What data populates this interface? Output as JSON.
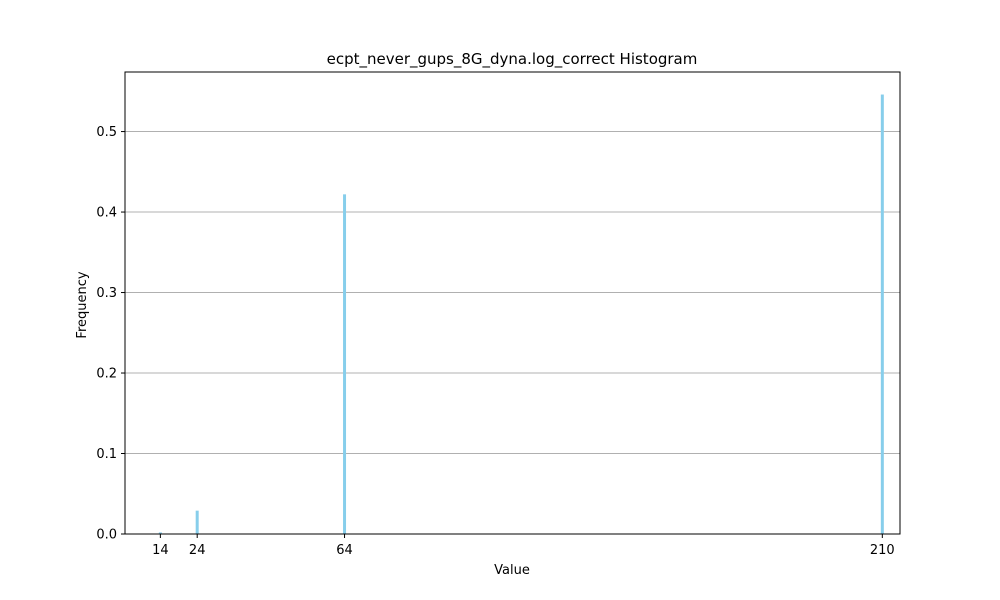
{
  "chart_data": {
    "type": "bar",
    "title": "ecpt_never_gups_8G_dyna.log_correct Histogram",
    "xlabel": "Value",
    "ylabel": "Frequency",
    "x": [
      14,
      24,
      64,
      210
    ],
    "values": [
      0.002,
      0.029,
      0.422,
      0.546
    ],
    "x_ticks": [
      14,
      24,
      64,
      210
    ],
    "y_ticks": [
      0.0,
      0.1,
      0.2,
      0.3,
      0.4,
      0.5
    ],
    "xlim": [
      4.4,
      214.8
    ],
    "ylim": [
      0,
      0.574
    ],
    "grid": "horizontal",
    "bar_color": "#87ceeb",
    "grid_color": "#b0b0b0"
  }
}
